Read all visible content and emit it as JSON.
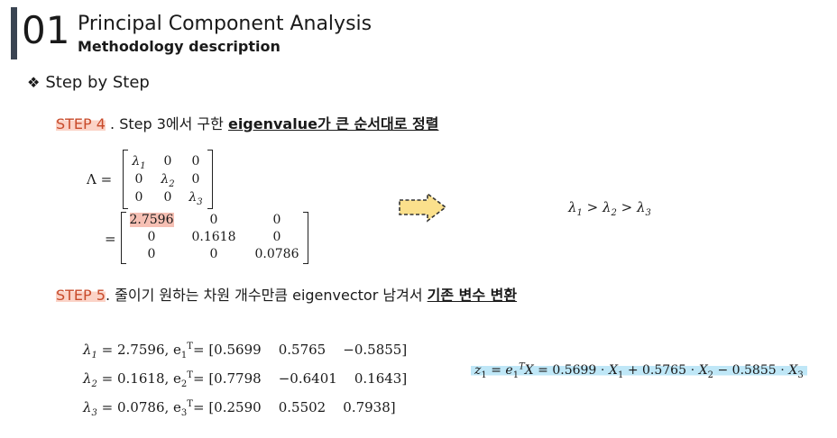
{
  "header": {
    "section_number": "01",
    "title": "Principal Component Analysis",
    "subtitle": "Methodology description"
  },
  "bullet": {
    "icon": "diamond-bullet-icon",
    "text": "Step by Step"
  },
  "step4": {
    "label": "STEP 4",
    "text": " . Step 3에서 구한 ",
    "emphasis": "eigenvalue가 큰 순서대로  정렬"
  },
  "lambda_matrix": {
    "lhs": "Λ =",
    "rows": [
      [
        "λ1",
        "0",
        "0"
      ],
      [
        "0",
        "λ2",
        "0"
      ],
      [
        "0",
        "0",
        "λ3"
      ]
    ]
  },
  "value_matrix": {
    "lhs": "=",
    "rows": [
      [
        "2.7596",
        "0",
        "0"
      ],
      [
        "0",
        "0.1618",
        "0"
      ],
      [
        "0",
        "0",
        "0.0786"
      ]
    ]
  },
  "ordering": "λ1 > λ2 > λ3",
  "step5": {
    "label": "STEP 5",
    "text": ".  줄이기 원하는 차원 개수만큼  eigenvector 남겨서 ",
    "emphasis": "기존 변수 변환"
  },
  "eigen_pairs": [
    {
      "lambda": "λ1",
      "value": "2.7596",
      "e": "e",
      "idx": "1",
      "vector": "[0.5699    0.5765    −0.5855]"
    },
    {
      "lambda": "λ2",
      "value": "0.1618",
      "e": "e",
      "idx": "2",
      "vector": "[0.7798    −0.6401    0.1643]"
    },
    {
      "lambda": "λ3",
      "value": "0.0786",
      "e": "e",
      "idx": "3",
      "vector": "[0.2590    0.5502    0.7938]"
    }
  ],
  "formula": "z1 = e1ᵀX = 0.5699 ⋅ X1 + 0.5765 ⋅ X2 − 0.5855 ⋅ X3",
  "colors": {
    "header_bar": "#3a4452",
    "step_label": "#c84a2a",
    "highlight_red": "#f6c0b4",
    "highlight_blue": "#bfe7f7",
    "arrow_fill": "#fbe08c"
  }
}
